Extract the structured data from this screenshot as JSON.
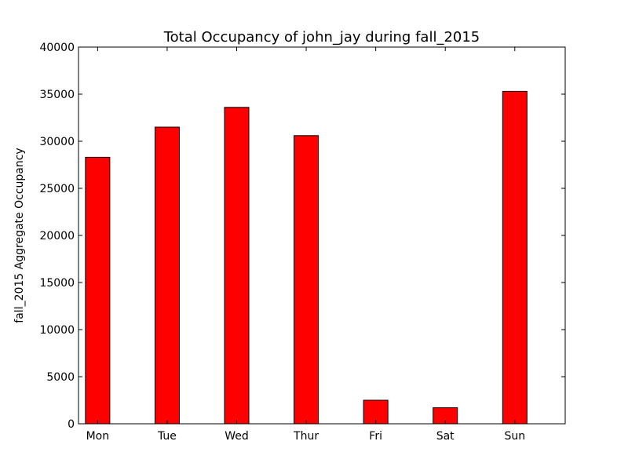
{
  "chart_data": {
    "type": "bar",
    "title": "Total Occupancy of john_jay during fall_2015",
    "xlabel": "",
    "ylabel": "fall_2015 Aggregate Occupancy",
    "categories": [
      "Mon",
      "Tue",
      "Wed",
      "Thur",
      "Fri",
      "Sat",
      "Sun"
    ],
    "values": [
      28300,
      31500,
      33600,
      30600,
      2500,
      1700,
      35300
    ],
    "ylim": [
      0,
      40000
    ],
    "yticks": [
      0,
      5000,
      10000,
      15000,
      20000,
      25000,
      30000,
      35000,
      40000
    ],
    "ytick_labels": [
      "0",
      "5000",
      "10000",
      "15000",
      "20000",
      "25000",
      "30000",
      "35000",
      "40000"
    ],
    "grid": false,
    "bar_color": "#ff0000",
    "edge_color": "#000000"
  }
}
